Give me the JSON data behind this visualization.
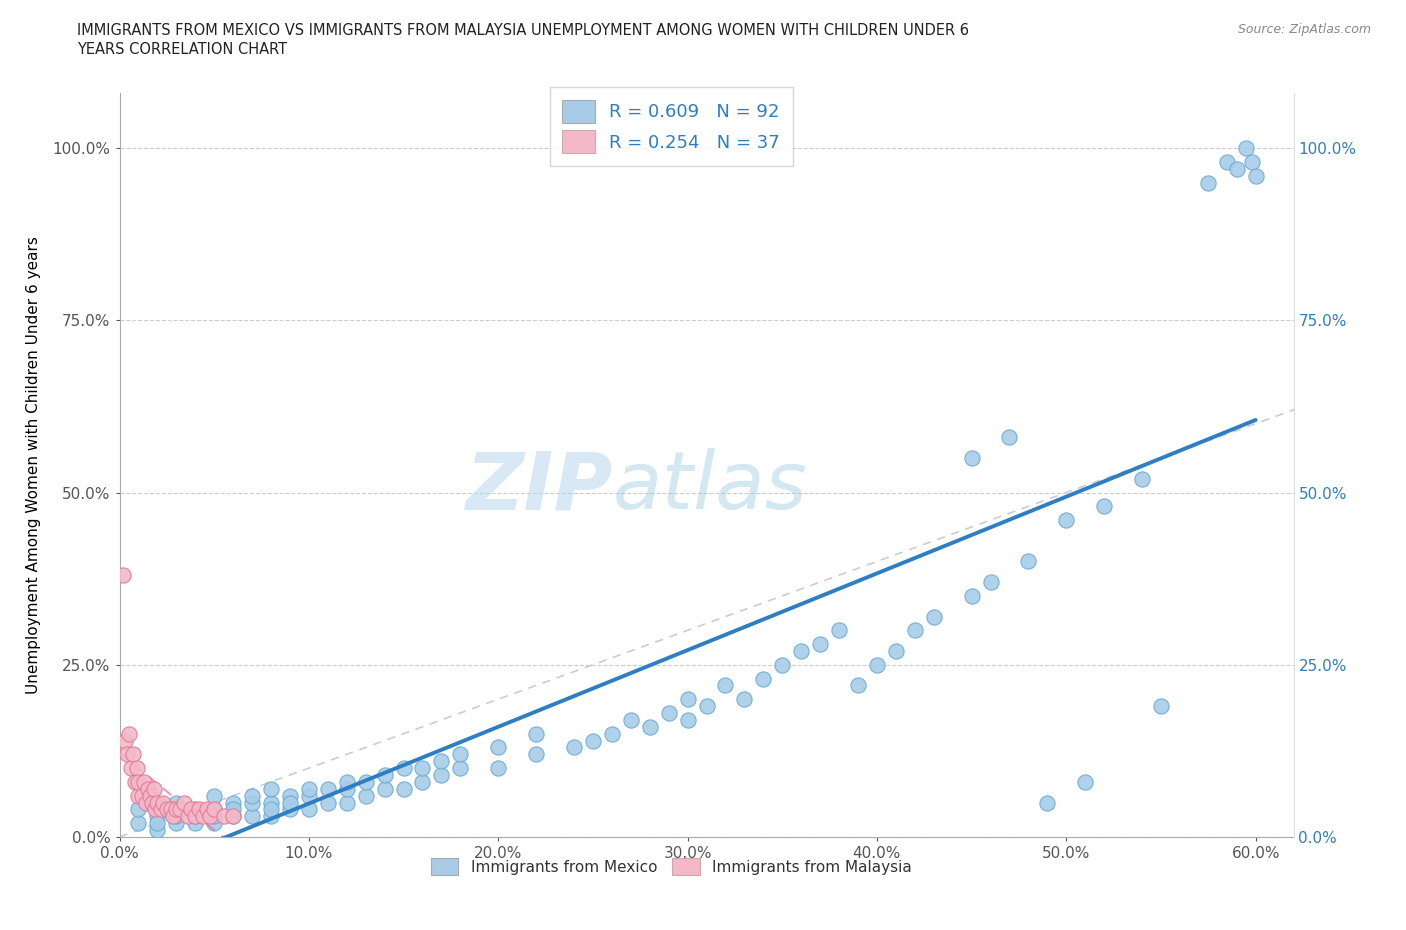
{
  "title_line1": "IMMIGRANTS FROM MEXICO VS IMMIGRANTS FROM MALAYSIA UNEMPLOYMENT AMONG WOMEN WITH CHILDREN UNDER 6",
  "title_line2": "YEARS CORRELATION CHART",
  "source": "Source: ZipAtlas.com",
  "ylabel": "Unemployment Among Women with Children Under 6 years",
  "xlim": [
    0.0,
    0.62
  ],
  "ylim": [
    0.0,
    1.08
  ],
  "ytick_labels": [
    "0.0%",
    "25.0%",
    "50.0%",
    "75.0%",
    "100.0%"
  ],
  "ytick_values": [
    0.0,
    0.25,
    0.5,
    0.75,
    1.0
  ],
  "xtick_labels": [
    "0.0%",
    "10.0%",
    "20.0%",
    "30.0%",
    "40.0%",
    "50.0%",
    "60.0%"
  ],
  "xtick_values": [
    0.0,
    0.1,
    0.2,
    0.3,
    0.4,
    0.5,
    0.6
  ],
  "mexico_color": "#a8cce8",
  "malaysia_color": "#f4b8c8",
  "mexico_edge": "#6aaad4",
  "malaysia_edge": "#e07898",
  "trendline_mexico_color": "#2e7ec4",
  "trendline_malaysia_color": "#e07090",
  "diagonal_color": "#cccccc",
  "R_mexico": 0.609,
  "N_mexico": 92,
  "R_malaysia": 0.254,
  "N_malaysia": 37,
  "legend_color_mexico": "#a8cce8",
  "legend_color_malaysia": "#f4b8c8",
  "watermark_zip": "ZIP",
  "watermark_atlas": "atlas",
  "background_color": "#ffffff",
  "mexico_x": [
    0.01,
    0.01,
    0.02,
    0.02,
    0.02,
    0.02,
    0.03,
    0.03,
    0.03,
    0.03,
    0.04,
    0.04,
    0.04,
    0.05,
    0.05,
    0.05,
    0.05,
    0.06,
    0.06,
    0.06,
    0.07,
    0.07,
    0.07,
    0.08,
    0.08,
    0.08,
    0.08,
    0.09,
    0.09,
    0.09,
    0.1,
    0.1,
    0.1,
    0.11,
    0.11,
    0.12,
    0.12,
    0.12,
    0.13,
    0.13,
    0.14,
    0.14,
    0.15,
    0.15,
    0.16,
    0.16,
    0.17,
    0.17,
    0.18,
    0.18,
    0.2,
    0.2,
    0.22,
    0.22,
    0.24,
    0.25,
    0.26,
    0.27,
    0.28,
    0.29,
    0.3,
    0.3,
    0.31,
    0.32,
    0.33,
    0.34,
    0.35,
    0.36,
    0.37,
    0.38,
    0.39,
    0.4,
    0.41,
    0.42,
    0.43,
    0.45,
    0.46,
    0.48,
    0.5,
    0.52,
    0.54,
    0.45,
    0.47,
    0.49,
    0.51,
    0.55,
    0.575,
    0.585,
    0.59,
    0.595,
    0.598,
    0.6
  ],
  "mexico_y": [
    0.02,
    0.04,
    0.01,
    0.03,
    0.05,
    0.02,
    0.02,
    0.04,
    0.03,
    0.05,
    0.02,
    0.04,
    0.03,
    0.02,
    0.04,
    0.06,
    0.03,
    0.03,
    0.05,
    0.04,
    0.03,
    0.05,
    0.06,
    0.03,
    0.05,
    0.07,
    0.04,
    0.04,
    0.06,
    0.05,
    0.04,
    0.06,
    0.07,
    0.05,
    0.07,
    0.05,
    0.07,
    0.08,
    0.06,
    0.08,
    0.07,
    0.09,
    0.07,
    0.1,
    0.08,
    0.1,
    0.09,
    0.11,
    0.1,
    0.12,
    0.1,
    0.13,
    0.12,
    0.15,
    0.13,
    0.14,
    0.15,
    0.17,
    0.16,
    0.18,
    0.17,
    0.2,
    0.19,
    0.22,
    0.2,
    0.23,
    0.25,
    0.27,
    0.28,
    0.3,
    0.22,
    0.25,
    0.27,
    0.3,
    0.32,
    0.35,
    0.37,
    0.4,
    0.46,
    0.48,
    0.52,
    0.55,
    0.58,
    0.05,
    0.08,
    0.19,
    0.95,
    0.98,
    0.97,
    1.0,
    0.98,
    0.96
  ],
  "malaysia_x": [
    0.002,
    0.003,
    0.004,
    0.005,
    0.006,
    0.007,
    0.008,
    0.009,
    0.01,
    0.01,
    0.012,
    0.013,
    0.014,
    0.015,
    0.016,
    0.017,
    0.018,
    0.019,
    0.02,
    0.022,
    0.023,
    0.025,
    0.027,
    0.028,
    0.03,
    0.032,
    0.034,
    0.036,
    0.038,
    0.04,
    0.042,
    0.044,
    0.046,
    0.048,
    0.05,
    0.055,
    0.06
  ],
  "malaysia_y": [
    0.38,
    0.14,
    0.12,
    0.15,
    0.1,
    0.12,
    0.08,
    0.1,
    0.06,
    0.08,
    0.06,
    0.08,
    0.05,
    0.07,
    0.06,
    0.05,
    0.07,
    0.04,
    0.05,
    0.04,
    0.05,
    0.04,
    0.04,
    0.03,
    0.04,
    0.04,
    0.05,
    0.03,
    0.04,
    0.03,
    0.04,
    0.03,
    0.04,
    0.03,
    0.04,
    0.03,
    0.03
  ]
}
